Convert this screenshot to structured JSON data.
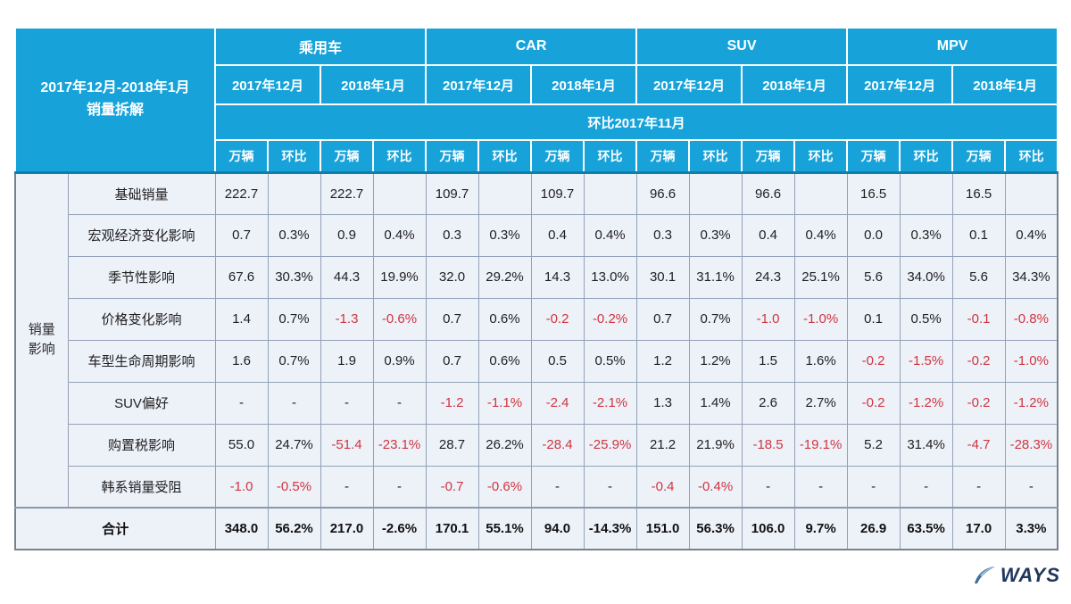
{
  "chart_data": {
    "type": "table",
    "title_lines": [
      "2017年12月-2018年1月",
      "销量拆解"
    ],
    "side_label_lines": [
      "销量",
      "影响"
    ],
    "compare_header": "环比2017年11月",
    "unit_headers": [
      "万辆",
      "环比"
    ],
    "groups": [
      {
        "label": "乘用车",
        "months": [
          "2017年12月",
          "2018年1月"
        ]
      },
      {
        "label": "CAR",
        "months": [
          "2017年12月",
          "2018年1月"
        ]
      },
      {
        "label": "SUV",
        "months": [
          "2017年12月",
          "2018年1月"
        ]
      },
      {
        "label": "MPV",
        "months": [
          "2017年12月",
          "2018年1月"
        ]
      }
    ],
    "rows": [
      {
        "label": "基础销量",
        "values": [
          "222.7",
          "",
          "222.7",
          "",
          "109.7",
          "",
          "109.7",
          "",
          "96.6",
          "",
          "96.6",
          "",
          "16.5",
          "",
          "16.5",
          ""
        ]
      },
      {
        "label": "宏观经济变化影响",
        "values": [
          "0.7",
          "0.3%",
          "0.9",
          "0.4%",
          "0.3",
          "0.3%",
          "0.4",
          "0.4%",
          "0.3",
          "0.3%",
          "0.4",
          "0.4%",
          "0.0",
          "0.3%",
          "0.1",
          "0.4%"
        ]
      },
      {
        "label": "季节性影响",
        "values": [
          "67.6",
          "30.3%",
          "44.3",
          "19.9%",
          "32.0",
          "29.2%",
          "14.3",
          "13.0%",
          "30.1",
          "31.1%",
          "24.3",
          "25.1%",
          "5.6",
          "34.0%",
          "5.6",
          "34.3%"
        ]
      },
      {
        "label": "价格变化影响",
        "values": [
          "1.4",
          "0.7%",
          "-1.3",
          "-0.6%",
          "0.7",
          "0.6%",
          "-0.2",
          "-0.2%",
          "0.7",
          "0.7%",
          "-1.0",
          "-1.0%",
          "0.1",
          "0.5%",
          "-0.1",
          "-0.8%"
        ]
      },
      {
        "label": "车型生命周期影响",
        "values": [
          "1.6",
          "0.7%",
          "1.9",
          "0.9%",
          "0.7",
          "0.6%",
          "0.5",
          "0.5%",
          "1.2",
          "1.2%",
          "1.5",
          "1.6%",
          "-0.2",
          "-1.5%",
          "-0.2",
          "-1.0%"
        ]
      },
      {
        "label": "SUV偏好",
        "values": [
          "-",
          "-",
          "-",
          "-",
          "-1.2",
          "-1.1%",
          "-2.4",
          "-2.1%",
          "1.3",
          "1.4%",
          "2.6",
          "2.7%",
          "-0.2",
          "-1.2%",
          "-0.2",
          "-1.2%"
        ]
      },
      {
        "label": "购置税影响",
        "values": [
          "55.0",
          "24.7%",
          "-51.4",
          "-23.1%",
          "28.7",
          "26.2%",
          "-28.4",
          "-25.9%",
          "21.2",
          "21.9%",
          "-18.5",
          "-19.1%",
          "5.2",
          "31.4%",
          "-4.7",
          "-28.3%"
        ]
      },
      {
        "label": "韩系销量受阻",
        "values": [
          "-1.0",
          "-0.5%",
          "-",
          "-",
          "-0.7",
          "-0.6%",
          "-",
          "-",
          "-0.4",
          "-0.4%",
          "-",
          "-",
          "-",
          "-",
          "-",
          "-"
        ]
      }
    ],
    "total": {
      "label": "合计",
      "values": [
        "348.0",
        "56.2%",
        "217.0",
        "-2.6%",
        "170.1",
        "55.1%",
        "94.0",
        "-14.3%",
        "151.0",
        "56.3%",
        "106.0",
        "9.7%",
        "26.9",
        "63.5%",
        "17.0",
        "3.3%"
      ]
    },
    "colors": {
      "header_blue": "#17a3da",
      "header_separator": "#0c80ad",
      "body_bg": "#edf1f8",
      "grid_border": "#93a2b8",
      "negative_red": "#d03540"
    }
  },
  "logo": {
    "text": "WAYS"
  }
}
